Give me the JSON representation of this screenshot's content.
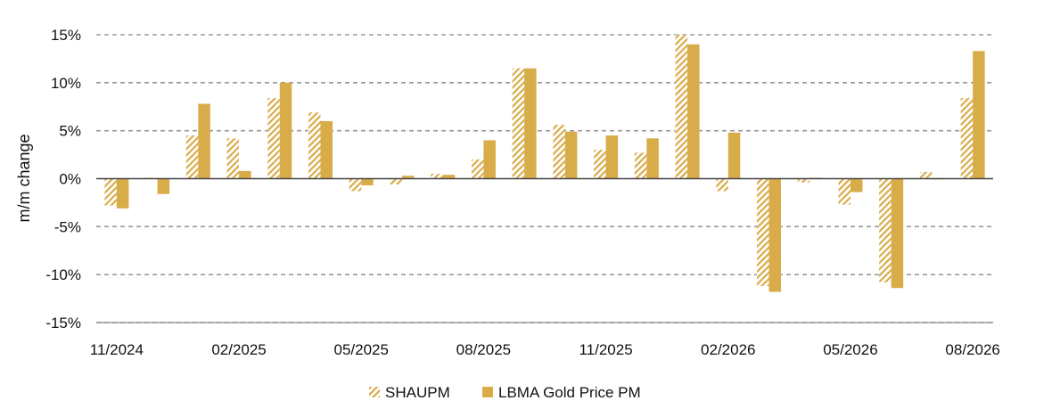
{
  "chart_data": {
    "type": "bar",
    "ylabel": "m/m change",
    "ylim": [
      -15,
      15
    ],
    "y_ticks": [
      "-15%",
      "-10%",
      "-5%",
      "0%",
      "5%",
      "10%",
      "15%"
    ],
    "y_tick_values": [
      -15,
      -10,
      -5,
      0,
      5,
      10,
      15
    ],
    "grid": true,
    "legend_position": "bottom",
    "categories": [
      "11/2024",
      "12/2024",
      "01/2025",
      "02/2025",
      "03/2025",
      "04/2025",
      "05/2025",
      "06/2025",
      "07/2025",
      "08/2025",
      "09/2025",
      "10/2025",
      "11/2025",
      "12/2025",
      "01/2026",
      "02/2026",
      "03/2026",
      "04/2026",
      "05/2026",
      "06/2026",
      "07/2026",
      "08/2026"
    ],
    "x_tick_labels": [
      "11/2024",
      "02/2025",
      "05/2025",
      "08/2025",
      "11/2025",
      "02/2026",
      "05/2026",
      "08/2026"
    ],
    "series": [
      {
        "name": "SHAUPM",
        "pattern": "hatched",
        "color": "#d9ac4a",
        "values": [
          -2.8,
          0.1,
          4.5,
          4.2,
          8.4,
          6.9,
          -1.3,
          -0.6,
          0.5,
          2.0,
          11.5,
          5.6,
          3.0,
          2.7,
          15.0,
          -1.3,
          -11.2,
          -0.4,
          -2.7,
          -10.8,
          0.7,
          8.4
        ]
      },
      {
        "name": "LBMA Gold Price PM",
        "pattern": "solid",
        "color": "#d9ac4a",
        "values": [
          -3.1,
          -1.6,
          7.8,
          0.8,
          10.0,
          6.0,
          -0.7,
          0.3,
          0.4,
          4.0,
          11.5,
          4.9,
          4.5,
          4.2,
          14.0,
          4.8,
          -11.8,
          0.1,
          -1.4,
          -11.4,
          0.0,
          13.3
        ]
      }
    ]
  }
}
